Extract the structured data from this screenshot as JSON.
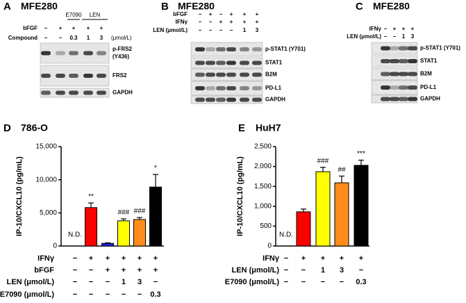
{
  "blots": [
    {
      "letter": "A",
      "title": "MFE280",
      "groups": [
        "E7090",
        "LEN"
      ],
      "rows": [
        {
          "label": "bFGF",
          "values": [
            "−",
            "+",
            "+",
            "+",
            "+"
          ]
        },
        {
          "label": "Compound",
          "values": [
            "−",
            "−",
            "0.3",
            "1",
            "3"
          ],
          "unit": "(μmol/L)"
        }
      ],
      "bands": [
        [
          "p-FRS2",
          "(Y436)"
        ],
        [
          "FRS2"
        ],
        [
          "GAPDH"
        ]
      ]
    },
    {
      "letter": "B",
      "title": "MFE280",
      "rows": [
        {
          "label": "bFGF",
          "values": [
            "−",
            "+",
            "−",
            "+",
            "+",
            "+"
          ]
        },
        {
          "label": "IFNγ",
          "values": [
            "−",
            "−",
            "+",
            "+",
            "+",
            "+"
          ]
        },
        {
          "label": "LEN (μmol/L)",
          "values": [
            "−",
            "−",
            "−",
            "−",
            "1",
            "3"
          ]
        }
      ],
      "bands": [
        [
          "p-STAT1 (Y701)"
        ],
        [
          "STAT1"
        ],
        [
          "B2M"
        ],
        [
          "PD-L1"
        ],
        [
          "GAPDH"
        ]
      ]
    },
    {
      "letter": "C",
      "title": "MFE280",
      "rows": [
        {
          "label": "IFNγ",
          "values": [
            "−",
            "+",
            "+",
            "+"
          ]
        },
        {
          "label": "LEN (μmol/L)",
          "values": [
            "−",
            "−",
            "1",
            "3"
          ]
        }
      ],
      "bands": [
        [
          "p-STAT1 (Y701)"
        ],
        [
          "STAT1"
        ],
        [
          "B2M"
        ],
        [
          "PD-L1"
        ],
        [
          "GAPDH"
        ]
      ]
    }
  ],
  "chart_data": [
    {
      "type": "bar",
      "letter": "D",
      "title": "786-O",
      "ylabel": "IP-10/CXCL10 (pg/mL)",
      "ylim": [
        0,
        15000
      ],
      "yticks": [
        0,
        {
          "value": 5000,
          "label": "5,000"
        },
        {
          "value": 10000,
          "label": "10,000"
        },
        {
          "value": 15000,
          "label": "15,000"
        }
      ],
      "values": [
        null,
        5800,
        400,
        3800,
        4000,
        8900
      ],
      "errors": [
        null,
        700,
        80,
        300,
        300,
        1900
      ],
      "colors": [
        "#ff0000",
        "#ff0000",
        "#1f1fe6",
        "#ffff00",
        "#ff8c1a",
        "#000000"
      ],
      "annotations": [
        "N.D.",
        "**",
        null,
        "###",
        "###",
        "*"
      ],
      "conditions": [
        {
          "label": "IFNγ",
          "values": [
            "−",
            "+",
            "+",
            "+",
            "+",
            "+"
          ]
        },
        {
          "label": "bFGF",
          "values": [
            "−",
            "−",
            "+",
            "+",
            "+",
            "+"
          ]
        },
        {
          "label": "LEN (μmol/L)",
          "values": [
            "−",
            "−",
            "−",
            "1",
            "3",
            "−"
          ]
        },
        {
          "label": "E7090 (μmol/L)",
          "values": [
            "−",
            "−",
            "−",
            "−",
            "−",
            "0.3"
          ]
        }
      ]
    },
    {
      "type": "bar",
      "letter": "E",
      "title": "HuH7",
      "ylabel": "IP-10/CXCL10 (pg/mL)",
      "ylim": [
        0,
        2500
      ],
      "yticks": [
        0,
        500,
        {
          "value": 1000,
          "label": "1,000"
        },
        {
          "value": 1500,
          "label": "1,500"
        },
        {
          "value": 2000,
          "label": "2,000"
        },
        {
          "value": 2500,
          "label": "2,500"
        }
      ],
      "values": [
        null,
        860,
        1870,
        1590,
        2030
      ],
      "errors": [
        null,
        70,
        110,
        170,
        130
      ],
      "colors": [
        "#ff0000",
        "#ff0000",
        "#ffff00",
        "#ff8c1a",
        "#000000"
      ],
      "annotations": [
        "N.D.",
        null,
        "###",
        "##",
        "***"
      ],
      "conditions": [
        {
          "label": "IFNγ",
          "values": [
            "−",
            "+",
            "+",
            "+",
            "+"
          ]
        },
        {
          "label": "LEN (μmol/L)",
          "values": [
            "−",
            "−",
            "1",
            "3",
            "−"
          ]
        },
        {
          "label": "E7090 (μmol/L)",
          "values": [
            "−",
            "−",
            "−",
            "−",
            "0.3"
          ]
        }
      ]
    }
  ]
}
